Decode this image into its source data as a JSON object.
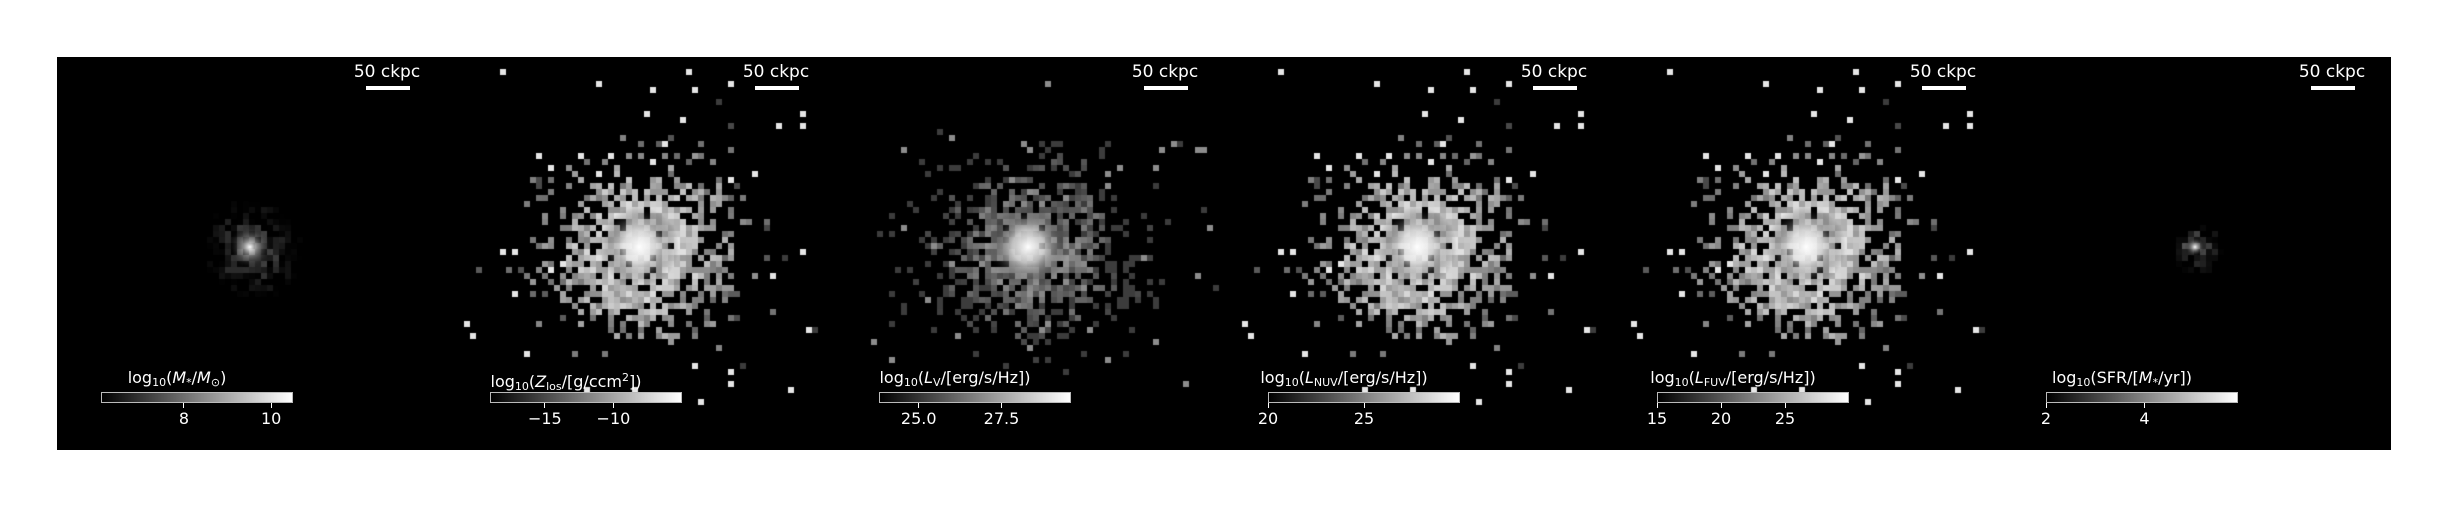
{
  "panels": [
    {
      "scalebar": "50 ckpc",
      "quantity": "log10(M*/M⊙)",
      "colorbar": {
        "vmin": 6.1,
        "vmax": 10.5,
        "ticks": [
          "8",
          "10"
        ],
        "tick_values": [
          8,
          10
        ]
      },
      "pattern": "faint"
    },
    {
      "scalebar": "50 ckpc",
      "quantity": "log10(Zlos/[g/ccm^2])",
      "colorbar": {
        "vmin": -19.0,
        "vmax": -5.0,
        "ticks": [
          "−15",
          "−10"
        ],
        "tick_values": [
          -15,
          -10
        ]
      },
      "pattern": "bright"
    },
    {
      "scalebar": "50 ckpc",
      "quantity": "log10(LV/[erg/s/Hz])",
      "colorbar": {
        "vmin": 23.8,
        "vmax": 29.6,
        "ticks": [
          "25.0",
          "27.5"
        ],
        "tick_values": [
          25.0,
          27.5
        ]
      },
      "pattern": "medium"
    },
    {
      "scalebar": "50 ckpc",
      "quantity": "log10(LNUV/[erg/s/Hz])",
      "colorbar": {
        "vmin": 20.0,
        "vmax": 30.0,
        "ticks": [
          "20",
          "25"
        ],
        "tick_values": [
          20,
          25
        ]
      },
      "pattern": "bright"
    },
    {
      "scalebar": "50 ckpc",
      "quantity": "log10(LFUV/[erg/s/Hz])",
      "colorbar": {
        "vmin": 15.0,
        "vmax": 30.0,
        "ticks": [
          "15",
          "20",
          "25"
        ],
        "tick_values": [
          15,
          20,
          25
        ]
      },
      "pattern": "bright"
    },
    {
      "scalebar": "50 ckpc",
      "quantity": "log10(SFR/[M*/yr])",
      "colorbar": {
        "vmin": 2.0,
        "vmax": 5.9,
        "ticks": [
          "2",
          "4"
        ],
        "tick_values": [
          2,
          4
        ]
      },
      "pattern": "compact"
    }
  ]
}
